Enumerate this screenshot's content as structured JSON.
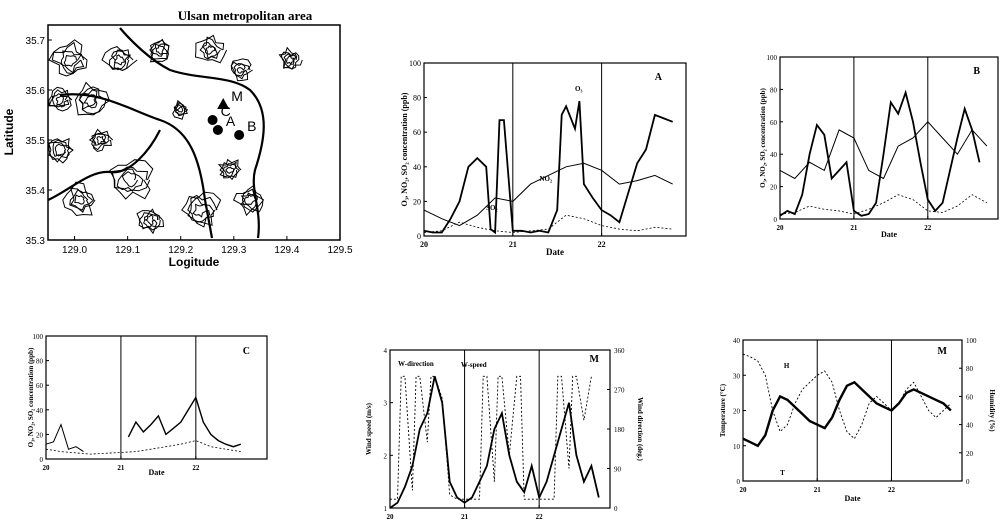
{
  "map": {
    "title": "Ulsan metropolitan area",
    "xlabel": "Logitude",
    "ylabel": "Latitude",
    "x_ticks": [
      "129.0",
      "129.1",
      "129.2",
      "129.3",
      "129.4",
      "129.5"
    ],
    "y_ticks": [
      "35.7",
      "35.6",
      "35.5",
      "35.4",
      "35.3"
    ],
    "xlim": [
      128.95,
      129.5
    ],
    "ylim": [
      35.3,
      35.73
    ],
    "markers": [
      {
        "label": "M",
        "lon": 129.28,
        "lat": 35.57
      },
      {
        "label": "A",
        "lon": 129.27,
        "lat": 35.52
      },
      {
        "label": "B",
        "lon": 129.31,
        "lat": 35.51
      },
      {
        "label": "C",
        "lon": 129.26,
        "lat": 35.54
      }
    ]
  },
  "chart_data": [
    {
      "type": "line",
      "panel": "A",
      "xlabel": "Date",
      "ylabel": "O₃, NO₂, SO₂ concentration (ppb)",
      "ylim": [
        0,
        100
      ],
      "y_ticks": [
        "0",
        "20",
        "40",
        "60",
        "80",
        "100"
      ],
      "x_ticks": [
        "20",
        "21",
        "22"
      ],
      "dividers": [
        21,
        22
      ],
      "annotations": [
        "O₃",
        "NO₂",
        "SO₂"
      ],
      "series": [
        {
          "x": [
            20.0,
            20.1,
            20.2,
            20.3,
            20.4,
            20.5,
            20.6,
            20.7,
            20.75,
            20.8,
            20.85,
            20.9,
            21.0,
            21.1,
            21.2,
            21.3,
            21.4,
            21.5,
            21.55,
            21.6,
            21.7,
            21.75,
            21.8,
            21.9,
            22.0,
            22.1,
            22.2,
            22.3,
            22.4,
            22.5,
            22.6,
            22.7,
            22.8
          ],
          "y": [
            3,
            2,
            2,
            10,
            20,
            40,
            45,
            40,
            4,
            2,
            67,
            67,
            3,
            3,
            2,
            3,
            2,
            15,
            70,
            75,
            62,
            78,
            30,
            22,
            15,
            12,
            8,
            25,
            42,
            50,
            70,
            68,
            66
          ]
        },
        {
          "x": [
            20.0,
            20.2,
            20.4,
            20.6,
            20.8,
            21.0,
            21.2,
            21.4,
            21.6,
            21.8,
            22.0,
            22.2,
            22.4,
            22.6,
            22.8
          ],
          "y": [
            15,
            10,
            6,
            12,
            22,
            20,
            30,
            35,
            40,
            42,
            38,
            30,
            32,
            35,
            30
          ]
        },
        {
          "x": [
            20.0,
            20.2,
            20.4,
            20.6,
            20.8,
            21.0,
            21.2,
            21.4,
            21.6,
            21.8,
            22.0,
            22.2,
            22.4,
            22.6,
            22.8
          ],
          "y": [
            2,
            3,
            8,
            5,
            3,
            2,
            3,
            4,
            12,
            10,
            6,
            4,
            3,
            5,
            4
          ]
        }
      ]
    },
    {
      "type": "line",
      "panel": "B",
      "xlabel": "Date",
      "ylabel": "O₃, NO₂, SO₂ concentration (ppb)",
      "ylim": [
        0,
        100
      ],
      "y_ticks": [
        "0",
        "20",
        "40",
        "60",
        "80",
        "100"
      ],
      "x_ticks": [
        "20",
        "21",
        "22"
      ],
      "dividers": [
        21,
        22
      ],
      "series": [
        {
          "x": [
            20.0,
            20.1,
            20.2,
            20.3,
            20.4,
            20.5,
            20.6,
            20.7,
            20.8,
            20.9,
            21.0,
            21.1,
            21.2,
            21.3,
            21.4,
            21.5,
            21.6,
            21.7,
            21.8,
            21.9,
            22.0,
            22.1,
            22.2,
            22.3,
            22.4,
            22.5,
            22.6,
            22.7
          ],
          "y": [
            2,
            5,
            3,
            15,
            40,
            58,
            52,
            25,
            30,
            35,
            5,
            2,
            3,
            10,
            40,
            72,
            65,
            78,
            60,
            35,
            12,
            5,
            10,
            30,
            50,
            68,
            55,
            35
          ]
        },
        {
          "x": [
            20.0,
            20.2,
            20.4,
            20.6,
            20.8,
            21.0,
            21.2,
            21.4,
            21.6,
            21.8,
            22.0,
            22.2,
            22.4,
            22.6,
            22.8
          ],
          "y": [
            30,
            25,
            35,
            30,
            55,
            50,
            30,
            25,
            45,
            50,
            60,
            50,
            40,
            55,
            45
          ]
        },
        {
          "x": [
            20.0,
            20.2,
            20.4,
            20.6,
            20.8,
            21.0,
            21.2,
            21.4,
            21.6,
            21.8,
            22.0,
            22.2,
            22.4,
            22.6,
            22.8
          ],
          "y": [
            3,
            4,
            8,
            6,
            5,
            3,
            6,
            10,
            15,
            12,
            5,
            4,
            8,
            15,
            10
          ]
        }
      ]
    },
    {
      "type": "line",
      "panel": "C",
      "xlabel": "Date",
      "ylabel": "O₃, NO₂, SO₂ concentration (ppb)",
      "ylim": [
        0,
        100
      ],
      "y_ticks": [
        "0",
        "20",
        "40",
        "60",
        "80",
        "100"
      ],
      "x_ticks": [
        "20",
        "21",
        "22"
      ],
      "dividers": [
        21,
        22
      ],
      "series": [
        {
          "x": [
            20.0,
            20.1,
            20.2,
            20.3,
            20.4,
            20.5
          ],
          "y": [
            12,
            14,
            28,
            8,
            10,
            6
          ]
        },
        {
          "x": [
            21.1,
            21.2,
            21.3,
            21.4,
            21.5,
            21.6,
            21.7,
            21.8,
            21.9,
            22.0,
            22.1,
            22.2,
            22.3,
            22.4,
            22.5,
            22.6
          ],
          "y": [
            18,
            30,
            22,
            28,
            35,
            20,
            25,
            30,
            40,
            50,
            30,
            20,
            15,
            12,
            10,
            12
          ]
        },
        {
          "x": [
            20.0,
            20.2,
            20.4,
            20.6,
            21.2,
            21.4,
            21.6,
            21.8,
            22.0,
            22.2,
            22.4,
            22.6
          ],
          "y": [
            8,
            6,
            5,
            4,
            6,
            8,
            10,
            12,
            15,
            10,
            8,
            6
          ]
        }
      ]
    },
    {
      "type": "line",
      "panel": "M",
      "xlabel": "Date",
      "ylabel": "Wind speed (m/s)",
      "y2label": "Wind direction (deg.)",
      "ylim": [
        1,
        4
      ],
      "y2lim": [
        0,
        360
      ],
      "y_ticks": [
        "1",
        "2",
        "3",
        "4"
      ],
      "y2_ticks": [
        "0",
        "90",
        "180",
        "270",
        "360"
      ],
      "x_ticks": [
        "20",
        "21",
        "22"
      ],
      "dividers": [
        21,
        22
      ],
      "annotations": [
        "W-direction",
        "W-speed"
      ],
      "series": [
        {
          "x": [
            20.0,
            20.1,
            20.2,
            20.3,
            20.4,
            20.5,
            20.6,
            20.7,
            20.8,
            20.9,
            21.0,
            21.1,
            21.2,
            21.3,
            21.4,
            21.5,
            21.6,
            21.7,
            21.8,
            21.9,
            22.0,
            22.1,
            22.2,
            22.3,
            22.4,
            22.5,
            22.6,
            22.7,
            22.8
          ],
          "y": [
            1,
            1.1,
            1.4,
            1.8,
            2.5,
            2.8,
            3.5,
            3.0,
            1.5,
            1.2,
            1.1,
            1.2,
            1.5,
            1.8,
            2.5,
            2.8,
            2.0,
            1.5,
            1.3,
            1.8,
            1.2,
            1.5,
            2.0,
            2.5,
            3.0,
            2.0,
            1.5,
            1.8,
            1.2
          ]
        },
        {
          "x": [
            20.0,
            20.1,
            20.15,
            20.2,
            20.3,
            20.35,
            20.4,
            20.5,
            20.55,
            20.6,
            20.7,
            20.8,
            20.9,
            21.0,
            21.2,
            21.25,
            21.3,
            21.4,
            21.45,
            21.5,
            21.6,
            21.7,
            21.75,
            21.8,
            22.0,
            22.2,
            22.25,
            22.3,
            22.4,
            22.45,
            22.5,
            22.6,
            22.7
          ],
          "y": [
            20,
            20,
            300,
            300,
            40,
            300,
            300,
            150,
            300,
            300,
            250,
            30,
            20,
            20,
            20,
            300,
            300,
            60,
            300,
            300,
            120,
            300,
            300,
            20,
            20,
            20,
            300,
            300,
            90,
            300,
            300,
            200,
            300
          ]
        }
      ]
    },
    {
      "type": "line",
      "panel": "M",
      "xlabel": "Date",
      "ylabel": "Temperature (°C)",
      "y2label": "Humidity (%)",
      "ylim": [
        0,
        40
      ],
      "y2lim": [
        0,
        100
      ],
      "y_ticks": [
        "0",
        "10",
        "20",
        "30",
        "40"
      ],
      "y2_ticks": [
        "0",
        "20",
        "40",
        "60",
        "80",
        "100"
      ],
      "x_ticks": [
        "20",
        "21",
        "22"
      ],
      "dividers": [
        21,
        22
      ],
      "annotations": [
        "H",
        "T"
      ],
      "series": [
        {
          "name": "T",
          "x": [
            20.0,
            20.1,
            20.2,
            20.3,
            20.4,
            20.5,
            20.6,
            20.7,
            20.8,
            20.9,
            21.0,
            21.1,
            21.2,
            21.3,
            21.4,
            21.5,
            21.6,
            21.7,
            21.8,
            21.9,
            22.0,
            22.1,
            22.2,
            22.3,
            22.4,
            22.5,
            22.6,
            22.7,
            22.8
          ],
          "y": [
            12,
            11,
            10,
            13,
            20,
            24,
            23,
            21,
            19,
            17,
            16,
            15,
            18,
            23,
            27,
            28,
            26,
            24,
            22,
            21,
            20,
            22,
            25,
            26,
            25,
            24,
            23,
            22,
            20
          ]
        },
        {
          "name": "H",
          "x": [
            20.0,
            20.1,
            20.2,
            20.3,
            20.4,
            20.5,
            20.6,
            20.7,
            20.8,
            20.9,
            21.0,
            21.1,
            21.2,
            21.3,
            21.4,
            21.5,
            21.6,
            21.7,
            21.8,
            21.9,
            22.0,
            22.1,
            22.2,
            22.3,
            22.4,
            22.5,
            22.6,
            22.7,
            22.8
          ],
          "y": [
            90,
            88,
            85,
            75,
            50,
            35,
            40,
            55,
            65,
            70,
            75,
            78,
            70,
            50,
            35,
            30,
            40,
            55,
            60,
            55,
            50,
            55,
            65,
            70,
            60,
            50,
            45,
            50,
            55
          ]
        }
      ]
    }
  ]
}
